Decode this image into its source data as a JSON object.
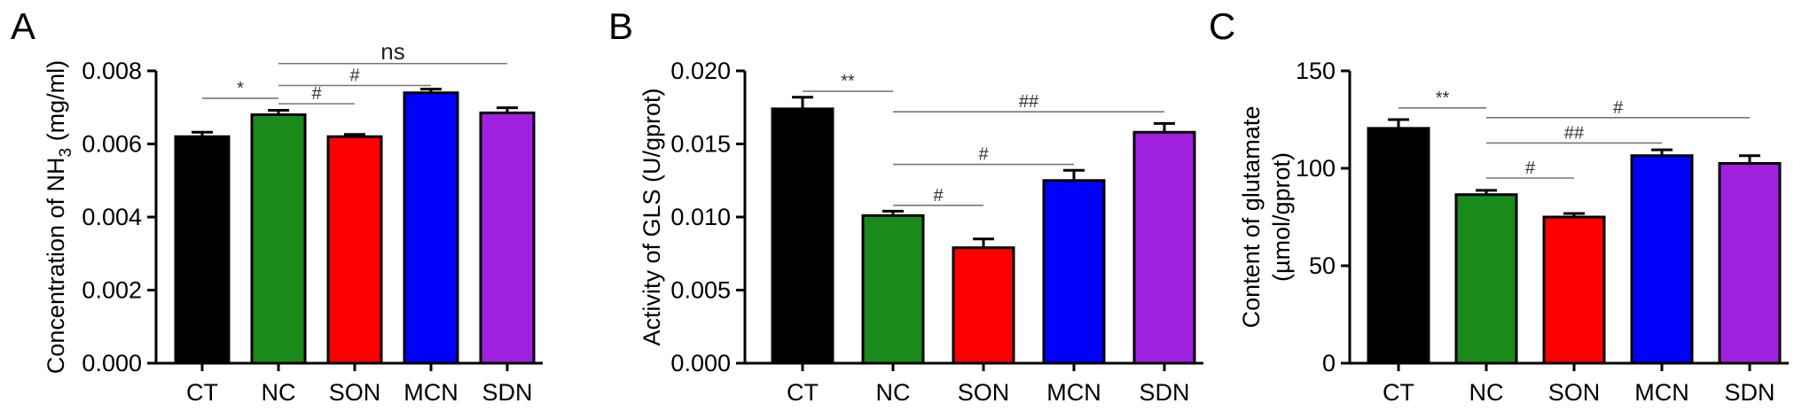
{
  "chart_data": [
    {
      "type": "bar",
      "panel": "A",
      "categories": [
        "CT",
        "NC",
        "SON",
        "MCN",
        "SDN"
      ],
      "values": [
        0.0062,
        0.0068,
        0.0062,
        0.0074,
        0.00685
      ],
      "errors": [
        0.00012,
        0.00012,
        6e-05,
        0.0001,
        0.00014
      ],
      "colors": [
        "#000000",
        "#1a8a1a",
        "#ff0000",
        "#0000ff",
        "#a020e0"
      ],
      "ylabel_main": "Concentration of NH",
      "ylabel_sub": "3",
      "ylabel_unit": " (mg/ml)",
      "ylim": [
        0,
        0.008
      ],
      "yticks": [
        0,
        0.002,
        0.004,
        0.006,
        0.008
      ],
      "yticklabels": [
        "0.000",
        "0.002",
        "0.004",
        "0.006",
        "0.008"
      ],
      "brackets": [
        {
          "from": 0,
          "to": 1,
          "level": 0.00725,
          "label": "*"
        },
        {
          "from": 1,
          "to": 2,
          "level": 0.0071,
          "label": "#"
        },
        {
          "from": 1,
          "to": 3,
          "level": 0.0076,
          "label": "#"
        },
        {
          "from": 1,
          "to": 4,
          "level": 0.0082,
          "label": "ns"
        }
      ]
    },
    {
      "type": "bar",
      "panel": "B",
      "categories": [
        "CT",
        "NC",
        "SON",
        "MCN",
        "SDN"
      ],
      "values": [
        0.0174,
        0.0101,
        0.0079,
        0.0125,
        0.0158
      ],
      "errors": [
        0.0008,
        0.0003,
        0.0006,
        0.0007,
        0.0006
      ],
      "colors": [
        "#000000",
        "#1a8a1a",
        "#ff0000",
        "#0000ff",
        "#a020e0"
      ],
      "ylabel_main": "Activity of GLS (U/gprot)",
      "ylim": [
        0,
        0.02
      ],
      "yticks": [
        0,
        0.005,
        0.01,
        0.015,
        0.02
      ],
      "yticklabels": [
        "0.000",
        "0.005",
        "0.010",
        "0.015",
        "0.020"
      ],
      "brackets": [
        {
          "from": 0,
          "to": 1,
          "level": 0.0186,
          "label": "**"
        },
        {
          "from": 1,
          "to": 4,
          "level": 0.0172,
          "label": "##"
        },
        {
          "from": 1,
          "to": 3,
          "level": 0.0136,
          "label": "#"
        },
        {
          "from": 1,
          "to": 2,
          "level": 0.0108,
          "label": "#"
        }
      ]
    },
    {
      "type": "bar",
      "panel": "C",
      "categories": [
        "CT",
        "NC",
        "SON",
        "MCN",
        "SDN"
      ],
      "values": [
        120.5,
        86.5,
        75,
        106.5,
        102.5
      ],
      "errors": [
        4.5,
        2.2,
        1.8,
        3,
        4
      ],
      "colors": [
        "#000000",
        "#1a8a1a",
        "#ff0000",
        "#0000ff",
        "#a020e0"
      ],
      "ylabel_main": "Content of glutamate",
      "ylabel_unit": "(µmol/gprot)",
      "ylim": [
        0,
        150
      ],
      "yticks": [
        0,
        50,
        100,
        150
      ],
      "yticklabels": [
        "0",
        "50",
        "100",
        "150"
      ],
      "brackets": [
        {
          "from": 0,
          "to": 1,
          "level": 131,
          "label": "**"
        },
        {
          "from": 1,
          "to": 4,
          "level": 126,
          "label": "#"
        },
        {
          "from": 1,
          "to": 3,
          "level": 113,
          "label": "##"
        },
        {
          "from": 1,
          "to": 2,
          "level": 95,
          "label": "#"
        }
      ]
    }
  ]
}
